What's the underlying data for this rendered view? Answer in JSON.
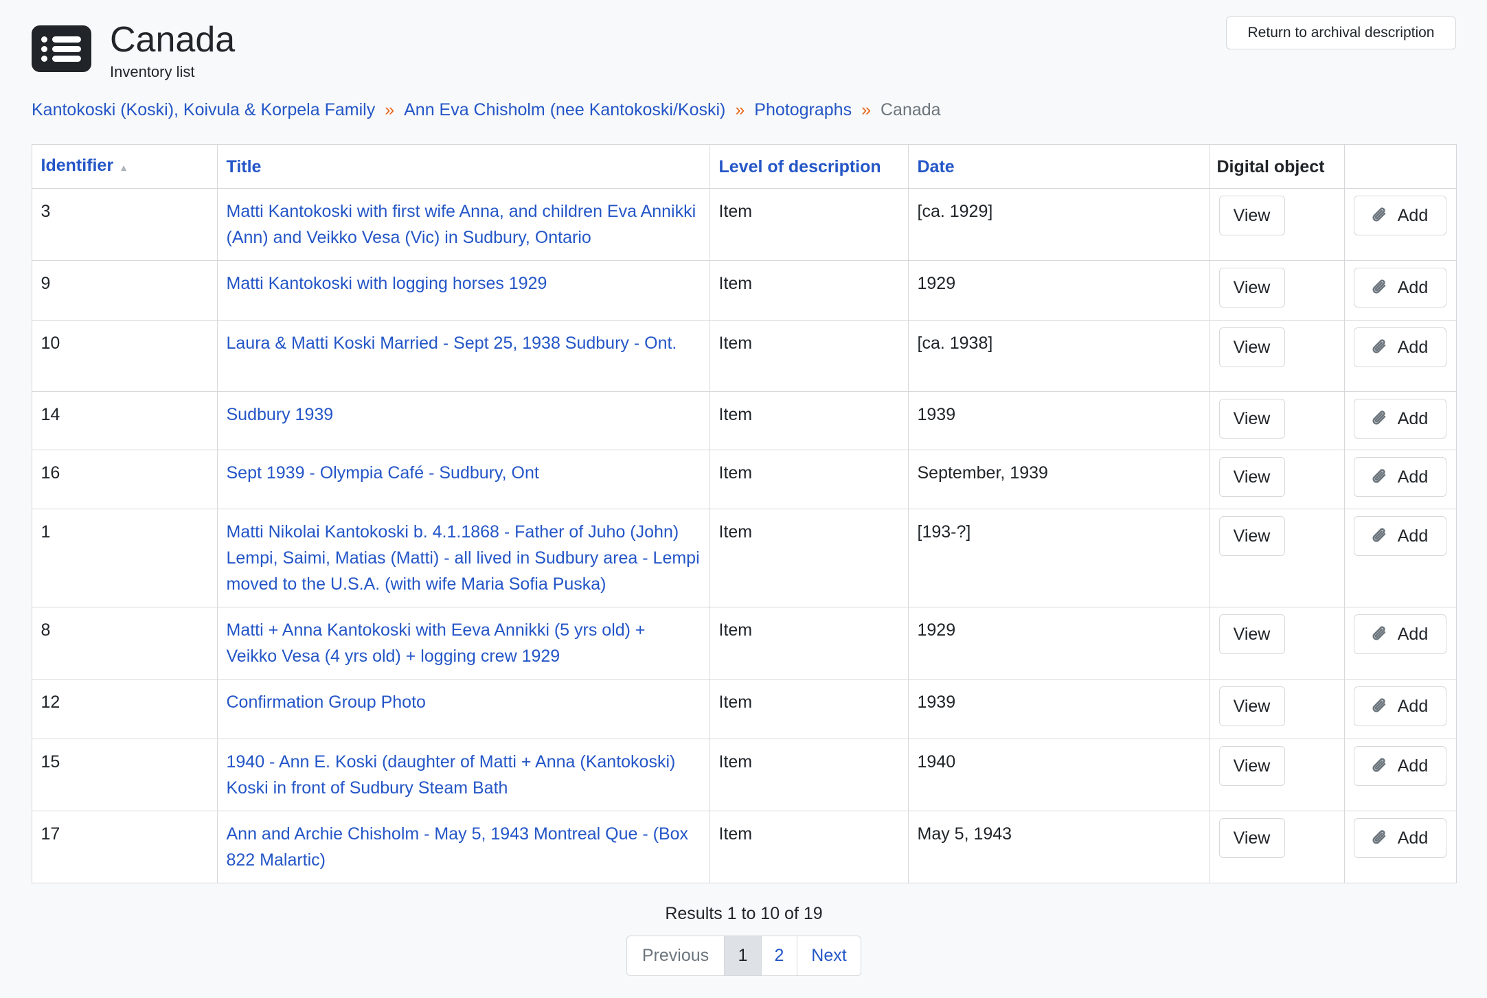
{
  "header": {
    "title": "Canada",
    "subtitle": "Inventory list",
    "icon": "list-icon",
    "return_label": "Return to archival description"
  },
  "breadcrumb": [
    {
      "label": "Kantokoski (Koski), Koivula & Korpela Family"
    },
    {
      "label": "Ann Eva Chisholm (nee Kantokoski/Koski)"
    },
    {
      "label": "Photographs"
    },
    {
      "label": "Canada"
    }
  ],
  "breadcrumb_separator": "»",
  "table": {
    "headers": {
      "identifier": "Identifier",
      "title": "Title",
      "level": "Level of description",
      "date": "Date",
      "digital_object": "Digital object"
    },
    "view_label": "View",
    "add_label": "Add",
    "rows": [
      {
        "identifier": "3",
        "title": "Matti Kantokoski with first wife Anna, and children Eva Annikki (Ann) and Veikko Vesa (Vic) in Sudbury, Ontario",
        "level": "Item",
        "date": "[ca. 1929]"
      },
      {
        "identifier": "9",
        "title": "Matti Kantokoski with logging horses 1929",
        "level": "Item",
        "date": "1929"
      },
      {
        "identifier": "10",
        "title": "Laura & Matti Koski Married - Sept 25, 1938 Sudbury - Ont.",
        "level": "Item",
        "date": "[ca. 1938]"
      },
      {
        "identifier": "14",
        "title": "Sudbury 1939",
        "level": "Item",
        "date": "1939"
      },
      {
        "identifier": "16",
        "title": "Sept 1939 - Olympia Café - Sudbury, Ont",
        "level": "Item",
        "date": "September, 1939"
      },
      {
        "identifier": "1",
        "title": "Matti Nikolai Kantokoski b. 4.1.1868 - Father of Juho (John) Lempi, Saimi, Matias (Matti) - all lived in Sudbury area - Lempi moved to the U.S.A. (with wife Maria Sofia Puska)",
        "level": "Item",
        "date": "[193-?]"
      },
      {
        "identifier": "8",
        "title": "Matti + Anna Kantokoski with Eeva Annikki (5 yrs old) + Veikko Vesa (4 yrs old) + logging crew 1929",
        "level": "Item",
        "date": "1929"
      },
      {
        "identifier": "12",
        "title": "Confirmation Group Photo",
        "level": "Item",
        "date": "1939"
      },
      {
        "identifier": "15",
        "title": "1940 - Ann E. Koski (daughter of Matti + Anna (Kantokoski) Koski in front of Sudbury Steam Bath",
        "level": "Item",
        "date": "1940"
      },
      {
        "identifier": "17",
        "title": "Ann and Archie Chisholm - May 5, 1943 Montreal Que - (Box 822 Malartic)",
        "level": "Item",
        "date": "May 5, 1943"
      }
    ]
  },
  "pagination": {
    "results": "Results 1 to 10 of 19",
    "previous": "Previous",
    "pages": [
      "1",
      "2"
    ],
    "current": "1",
    "next": "Next"
  },
  "colors": {
    "link": "#2456c7",
    "separator": "#e8671d",
    "background": "#f8f9fa"
  }
}
